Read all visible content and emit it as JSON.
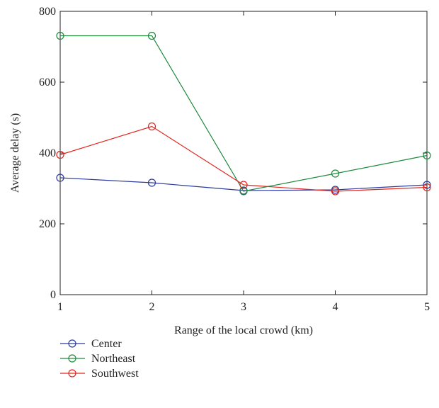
{
  "chart_data": {
    "type": "line",
    "xlabel": "Range of the local crowd (km)",
    "ylabel": "Average delay (s)",
    "x": [
      1,
      2,
      3,
      4,
      5
    ],
    "xlim": [
      1,
      5
    ],
    "ylim": [
      0,
      800
    ],
    "xticks": [
      "1",
      "2",
      "3",
      "4",
      "5"
    ],
    "yticks": [
      "0",
      "200",
      "400",
      "600",
      "800"
    ],
    "legend_position": "bottom-left",
    "grid": false,
    "marker": "circle-open",
    "series": [
      {
        "name": "Center",
        "color": "#2b3a9e",
        "values": [
          330,
          316,
          294,
          296,
          310
        ]
      },
      {
        "name": "Northeast",
        "color": "#1e8a3c",
        "values": [
          731,
          731,
          292,
          342,
          393
        ]
      },
      {
        "name": "Southwest",
        "color": "#e3261f",
        "values": [
          395,
          475,
          310,
          292,
          303
        ]
      }
    ]
  }
}
